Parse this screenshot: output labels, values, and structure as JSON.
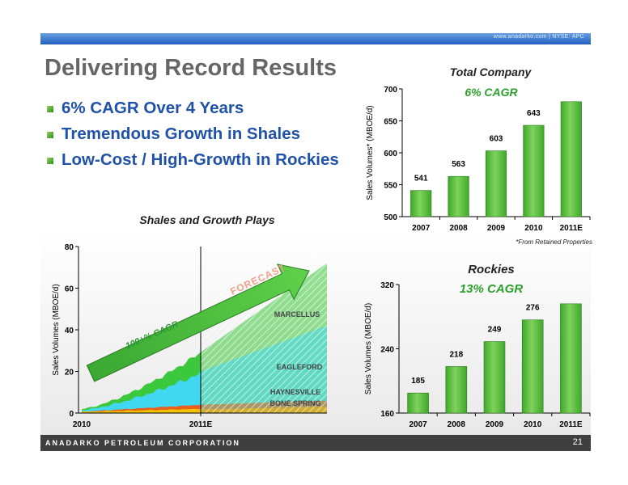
{
  "header": {
    "site_text": "www.anadarko.com  |   NYSE: APC"
  },
  "slide": {
    "title": "Delivering Record Results"
  },
  "bullets": [
    "6% CAGR Over 4 Years",
    "Tremendous Growth in Shales",
    "Low-Cost / High-Growth in Rockies"
  ],
  "footer": {
    "company": "ANADARKO PETROLEUM CORPORATION",
    "page": "21"
  },
  "colors": {
    "bar": "#3fa82a",
    "bar_light": "#7ed35c",
    "cagr_text": "#2ca02c",
    "header_blue": "#1f5fbf",
    "footer_bg": "#3f3f3f",
    "bullet_text": "#1f52a8"
  },
  "chart_data": [
    {
      "type": "bar",
      "title": "Total Company",
      "subtitle": "6% CAGR",
      "ylabel": "Sales Volumes* (MBOE/d)",
      "xlabel": "",
      "categories": [
        "2007",
        "2008",
        "2009",
        "2010",
        "2011E"
      ],
      "values": [
        541,
        563,
        603,
        643,
        680
      ],
      "data_labels": [
        "541",
        "563",
        "603",
        "643",
        ""
      ],
      "ylim": [
        500,
        700
      ],
      "yticks": [
        500,
        550,
        600,
        650,
        700
      ],
      "note": "*From Retained Properties",
      "grid": false
    },
    {
      "type": "bar",
      "title": "Rockies",
      "subtitle": "13% CAGR",
      "ylabel": "Sales Volumes (MBOE/d)",
      "xlabel": "",
      "categories": [
        "2007",
        "2008",
        "2009",
        "2010",
        "2011E"
      ],
      "values": [
        185,
        218,
        249,
        276,
        296
      ],
      "data_labels": [
        "185",
        "218",
        "249",
        "276",
        ""
      ],
      "ylim": [
        160,
        320
      ],
      "yticks": [
        160,
        240,
        320
      ],
      "grid": false
    },
    {
      "type": "area",
      "title": "Shales and Growth Plays",
      "ylabel": "Sales Volumes (MBOE/d)",
      "xlabel": "",
      "xticks": [
        "2010",
        "2011E"
      ],
      "ylim": [
        0,
        80
      ],
      "yticks": [
        0,
        20,
        40,
        60,
        80
      ],
      "series": [
        {
          "name": "BONE SPRING",
          "color": "#f2c200",
          "actual_end": 2,
          "forecast_end": 3
        },
        {
          "name": "HAYNESVILLE",
          "color": "#e8601c",
          "actual_end": 4,
          "forecast_end": 6
        },
        {
          "name": "EAGLEFORD",
          "color": "#40d8f0",
          "actual_end": 19,
          "forecast_end": 42
        },
        {
          "name": "MARCELLUS",
          "color": "#3cc83c",
          "actual_end": 29,
          "forecast_end": 72
        }
      ],
      "annotations": [
        "FORECAST",
        "100+% CAGR"
      ],
      "grid": false
    }
  ]
}
